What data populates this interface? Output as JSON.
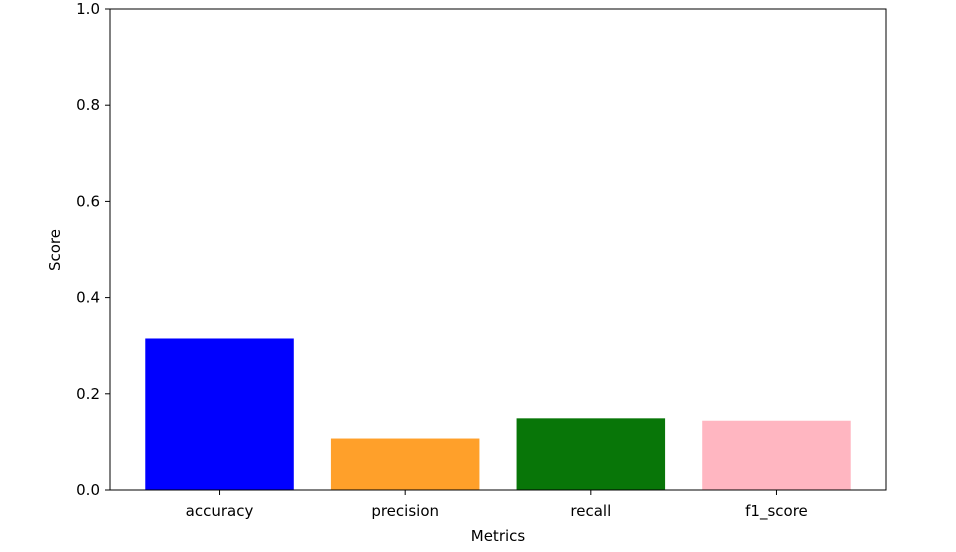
{
  "chart_data": {
    "type": "bar",
    "title": "",
    "xlabel": "Metrics",
    "ylabel": "Score",
    "categories": [
      "accuracy",
      "precision",
      "recall",
      "f1_score"
    ],
    "values": [
      0.315,
      0.107,
      0.149,
      0.144
    ],
    "colors": [
      "#0000ff",
      "#ffa02a",
      "#087608",
      "#ffb6c1"
    ],
    "ylim": [
      0,
      1.0
    ],
    "yticks": [
      "0.0",
      "0.2",
      "0.4",
      "0.6",
      "0.8",
      "1.0"
    ],
    "grid": false,
    "legend": "none"
  }
}
